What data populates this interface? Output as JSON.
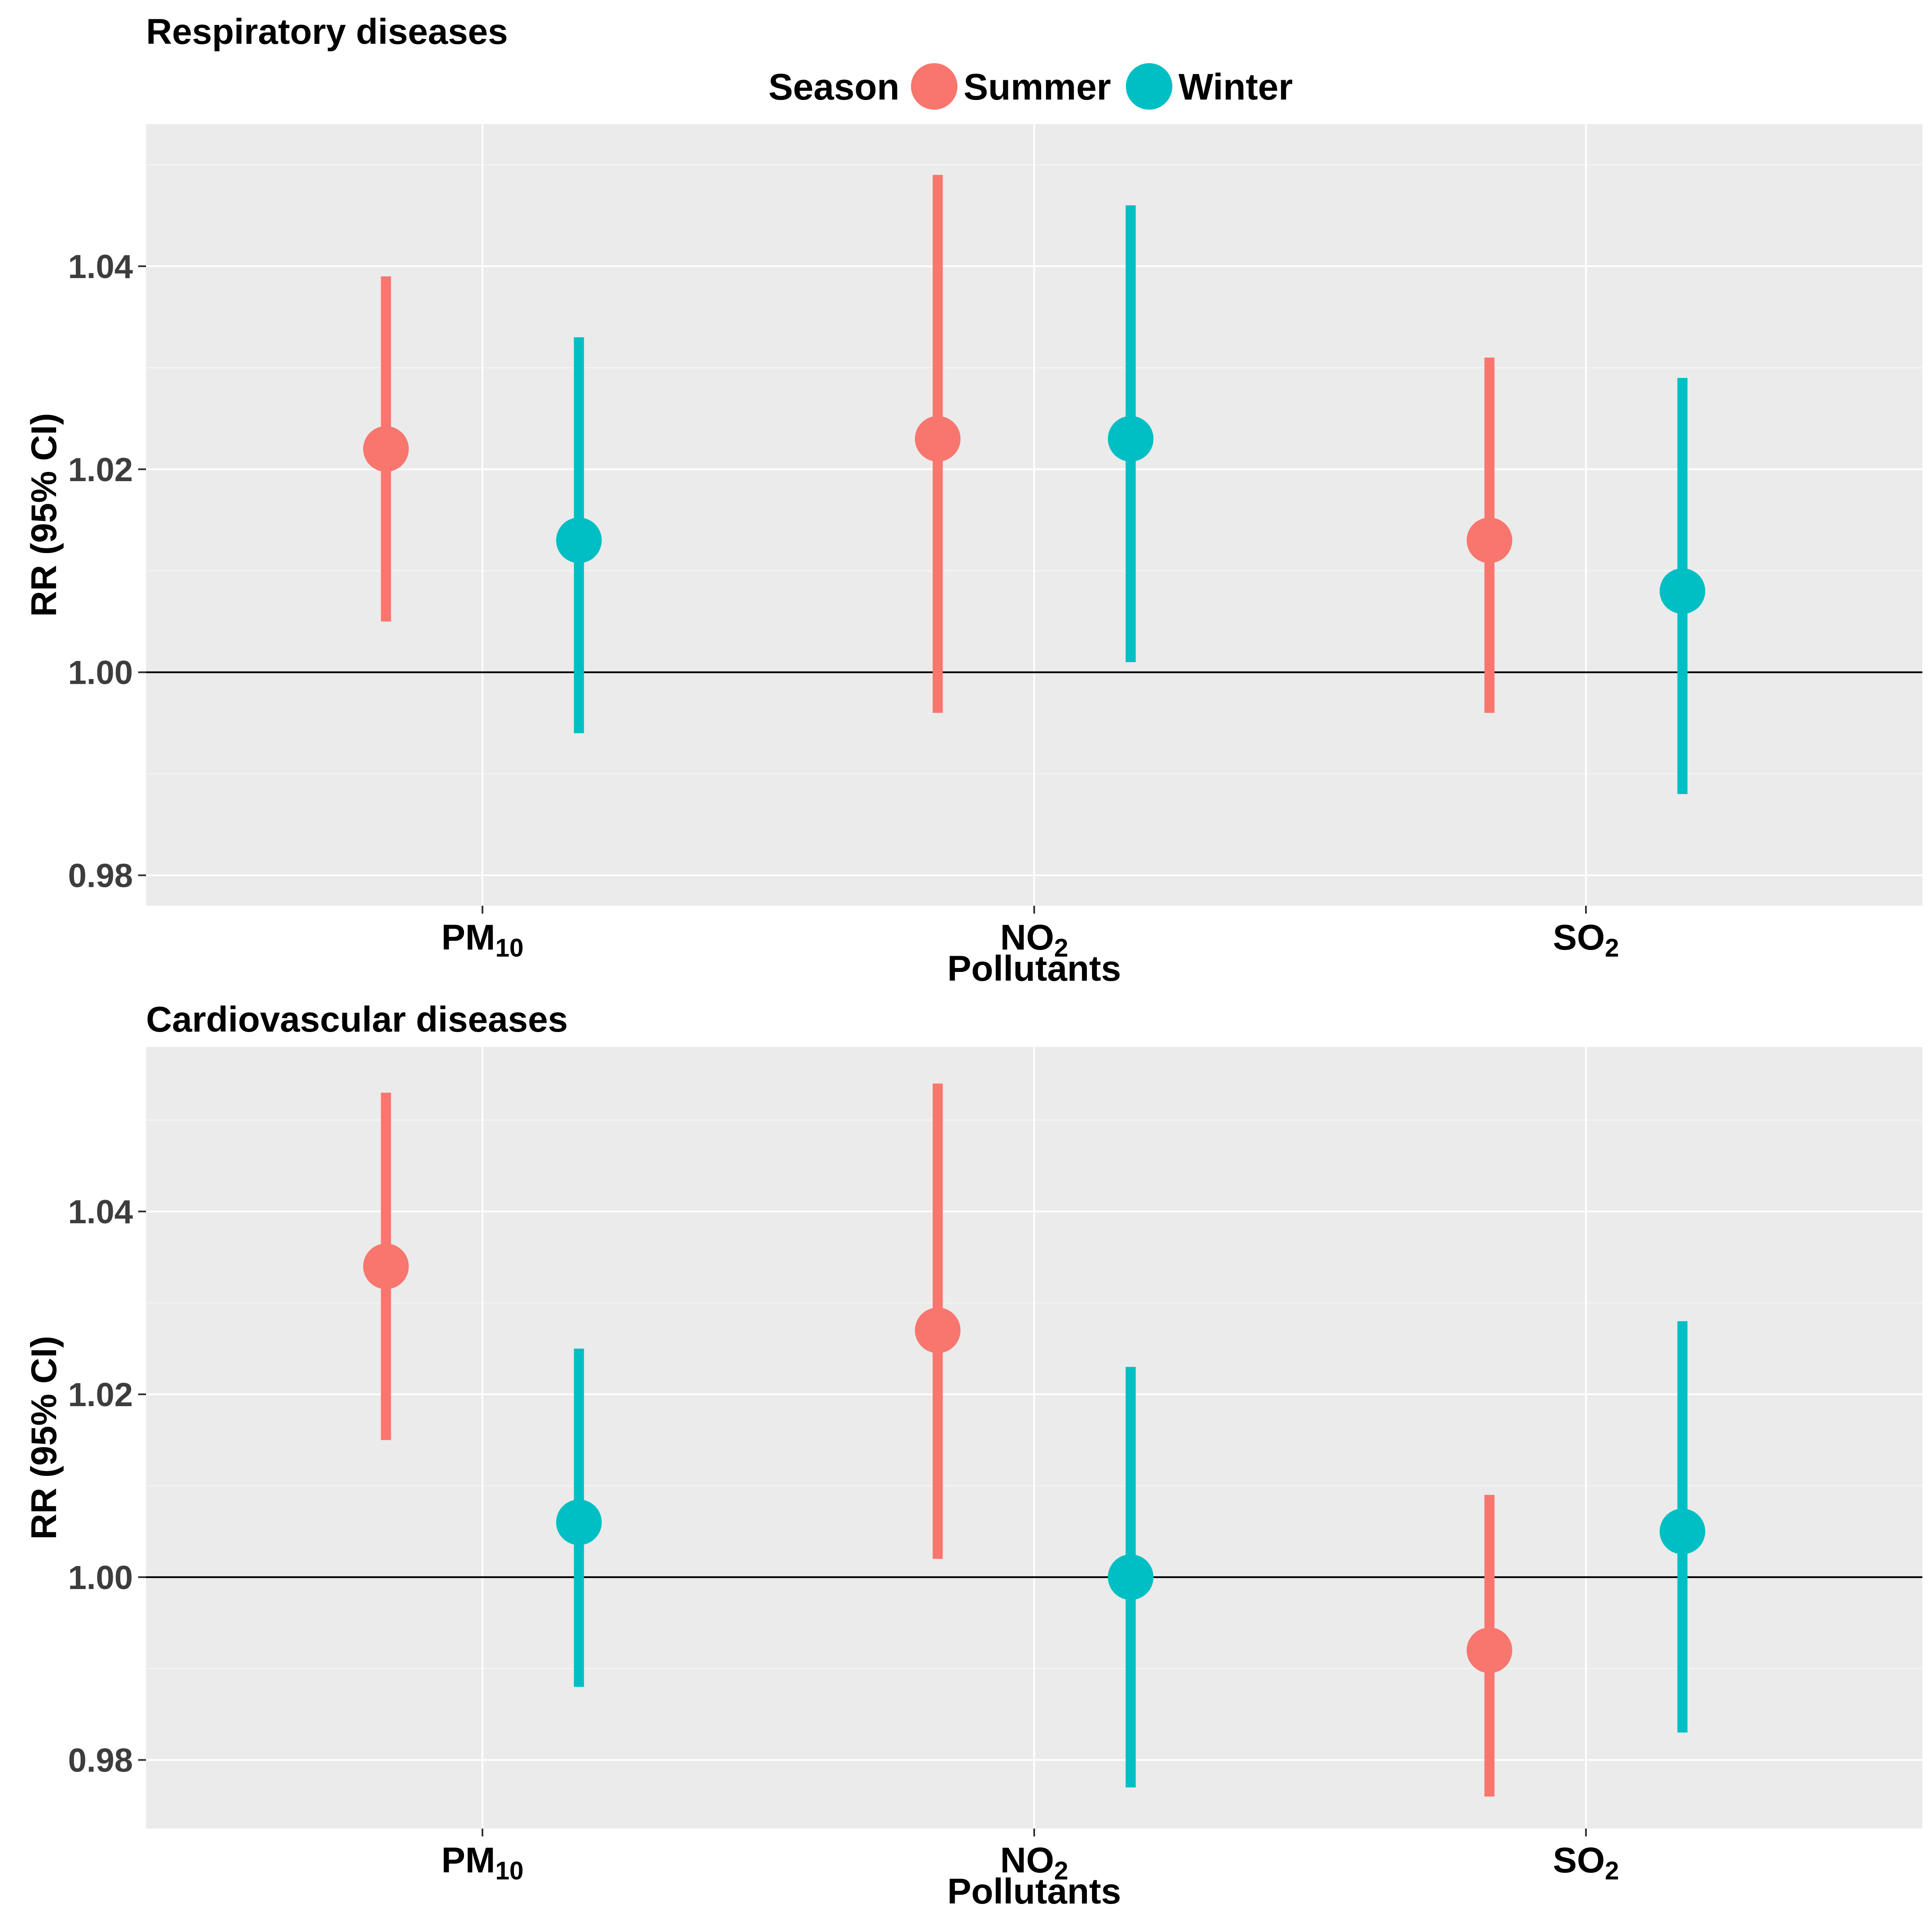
{
  "legend": {
    "title": "Season",
    "entries": [
      {
        "label": "Summer",
        "color": "#F8766D"
      },
      {
        "label": "Winter",
        "color": "#00BFC4"
      }
    ]
  },
  "chart_data": [
    {
      "type": "scatter",
      "title": "Respiratory diseases",
      "xlabel": "Pollutants",
      "ylabel": "RR (95% CI)",
      "categories": [
        "PM10",
        "NO2",
        "SO2"
      ],
      "category_labels": [
        {
          "base": "PM",
          "sub": "10"
        },
        {
          "base": "NO",
          "sub": "2"
        },
        {
          "base": "SO",
          "sub": "2"
        }
      ],
      "ylim": [
        0.977,
        1.054
      ],
      "yticks": [
        0.98,
        1.0,
        1.02,
        1.04
      ],
      "ytick_labels": [
        "0.98",
        "1.00",
        "1.02",
        "1.04"
      ],
      "reference_line": 1.0,
      "grid": true,
      "legend_position": "top",
      "series": [
        {
          "name": "Summer",
          "color": "#F8766D",
          "estimate": [
            1.022,
            1.023,
            1.013
          ],
          "lower": [
            1.005,
            0.996,
            0.996
          ],
          "upper": [
            1.039,
            1.049,
            1.031
          ]
        },
        {
          "name": "Winter",
          "color": "#00BFC4",
          "estimate": [
            1.013,
            1.023,
            1.008
          ],
          "lower": [
            0.994,
            1.001,
            0.988
          ],
          "upper": [
            1.033,
            1.046,
            1.029
          ]
        }
      ]
    },
    {
      "type": "scatter",
      "title": "Cardiovascular diseases",
      "xlabel": "Pollutants",
      "ylabel": "RR (95% CI)",
      "categories": [
        "PM10",
        "NO2",
        "SO2"
      ],
      "category_labels": [
        {
          "base": "PM",
          "sub": "10"
        },
        {
          "base": "NO",
          "sub": "2"
        },
        {
          "base": "SO",
          "sub": "2"
        }
      ],
      "ylim": [
        0.9725,
        1.058
      ],
      "yticks": [
        0.98,
        1.0,
        1.02,
        1.04
      ],
      "ytick_labels": [
        "0.98",
        "1.00",
        "1.02",
        "1.04"
      ],
      "reference_line": 1.0,
      "grid": true,
      "series": [
        {
          "name": "Summer",
          "color": "#F8766D",
          "estimate": [
            1.034,
            1.027,
            0.992
          ],
          "lower": [
            1.015,
            1.002,
            0.976
          ],
          "upper": [
            1.053,
            1.054,
            1.009
          ]
        },
        {
          "name": "Winter",
          "color": "#00BFC4",
          "estimate": [
            1.006,
            1.0,
            1.005
          ],
          "lower": [
            0.988,
            0.977,
            0.983
          ],
          "upper": [
            1.025,
            1.023,
            1.028
          ]
        }
      ]
    }
  ]
}
